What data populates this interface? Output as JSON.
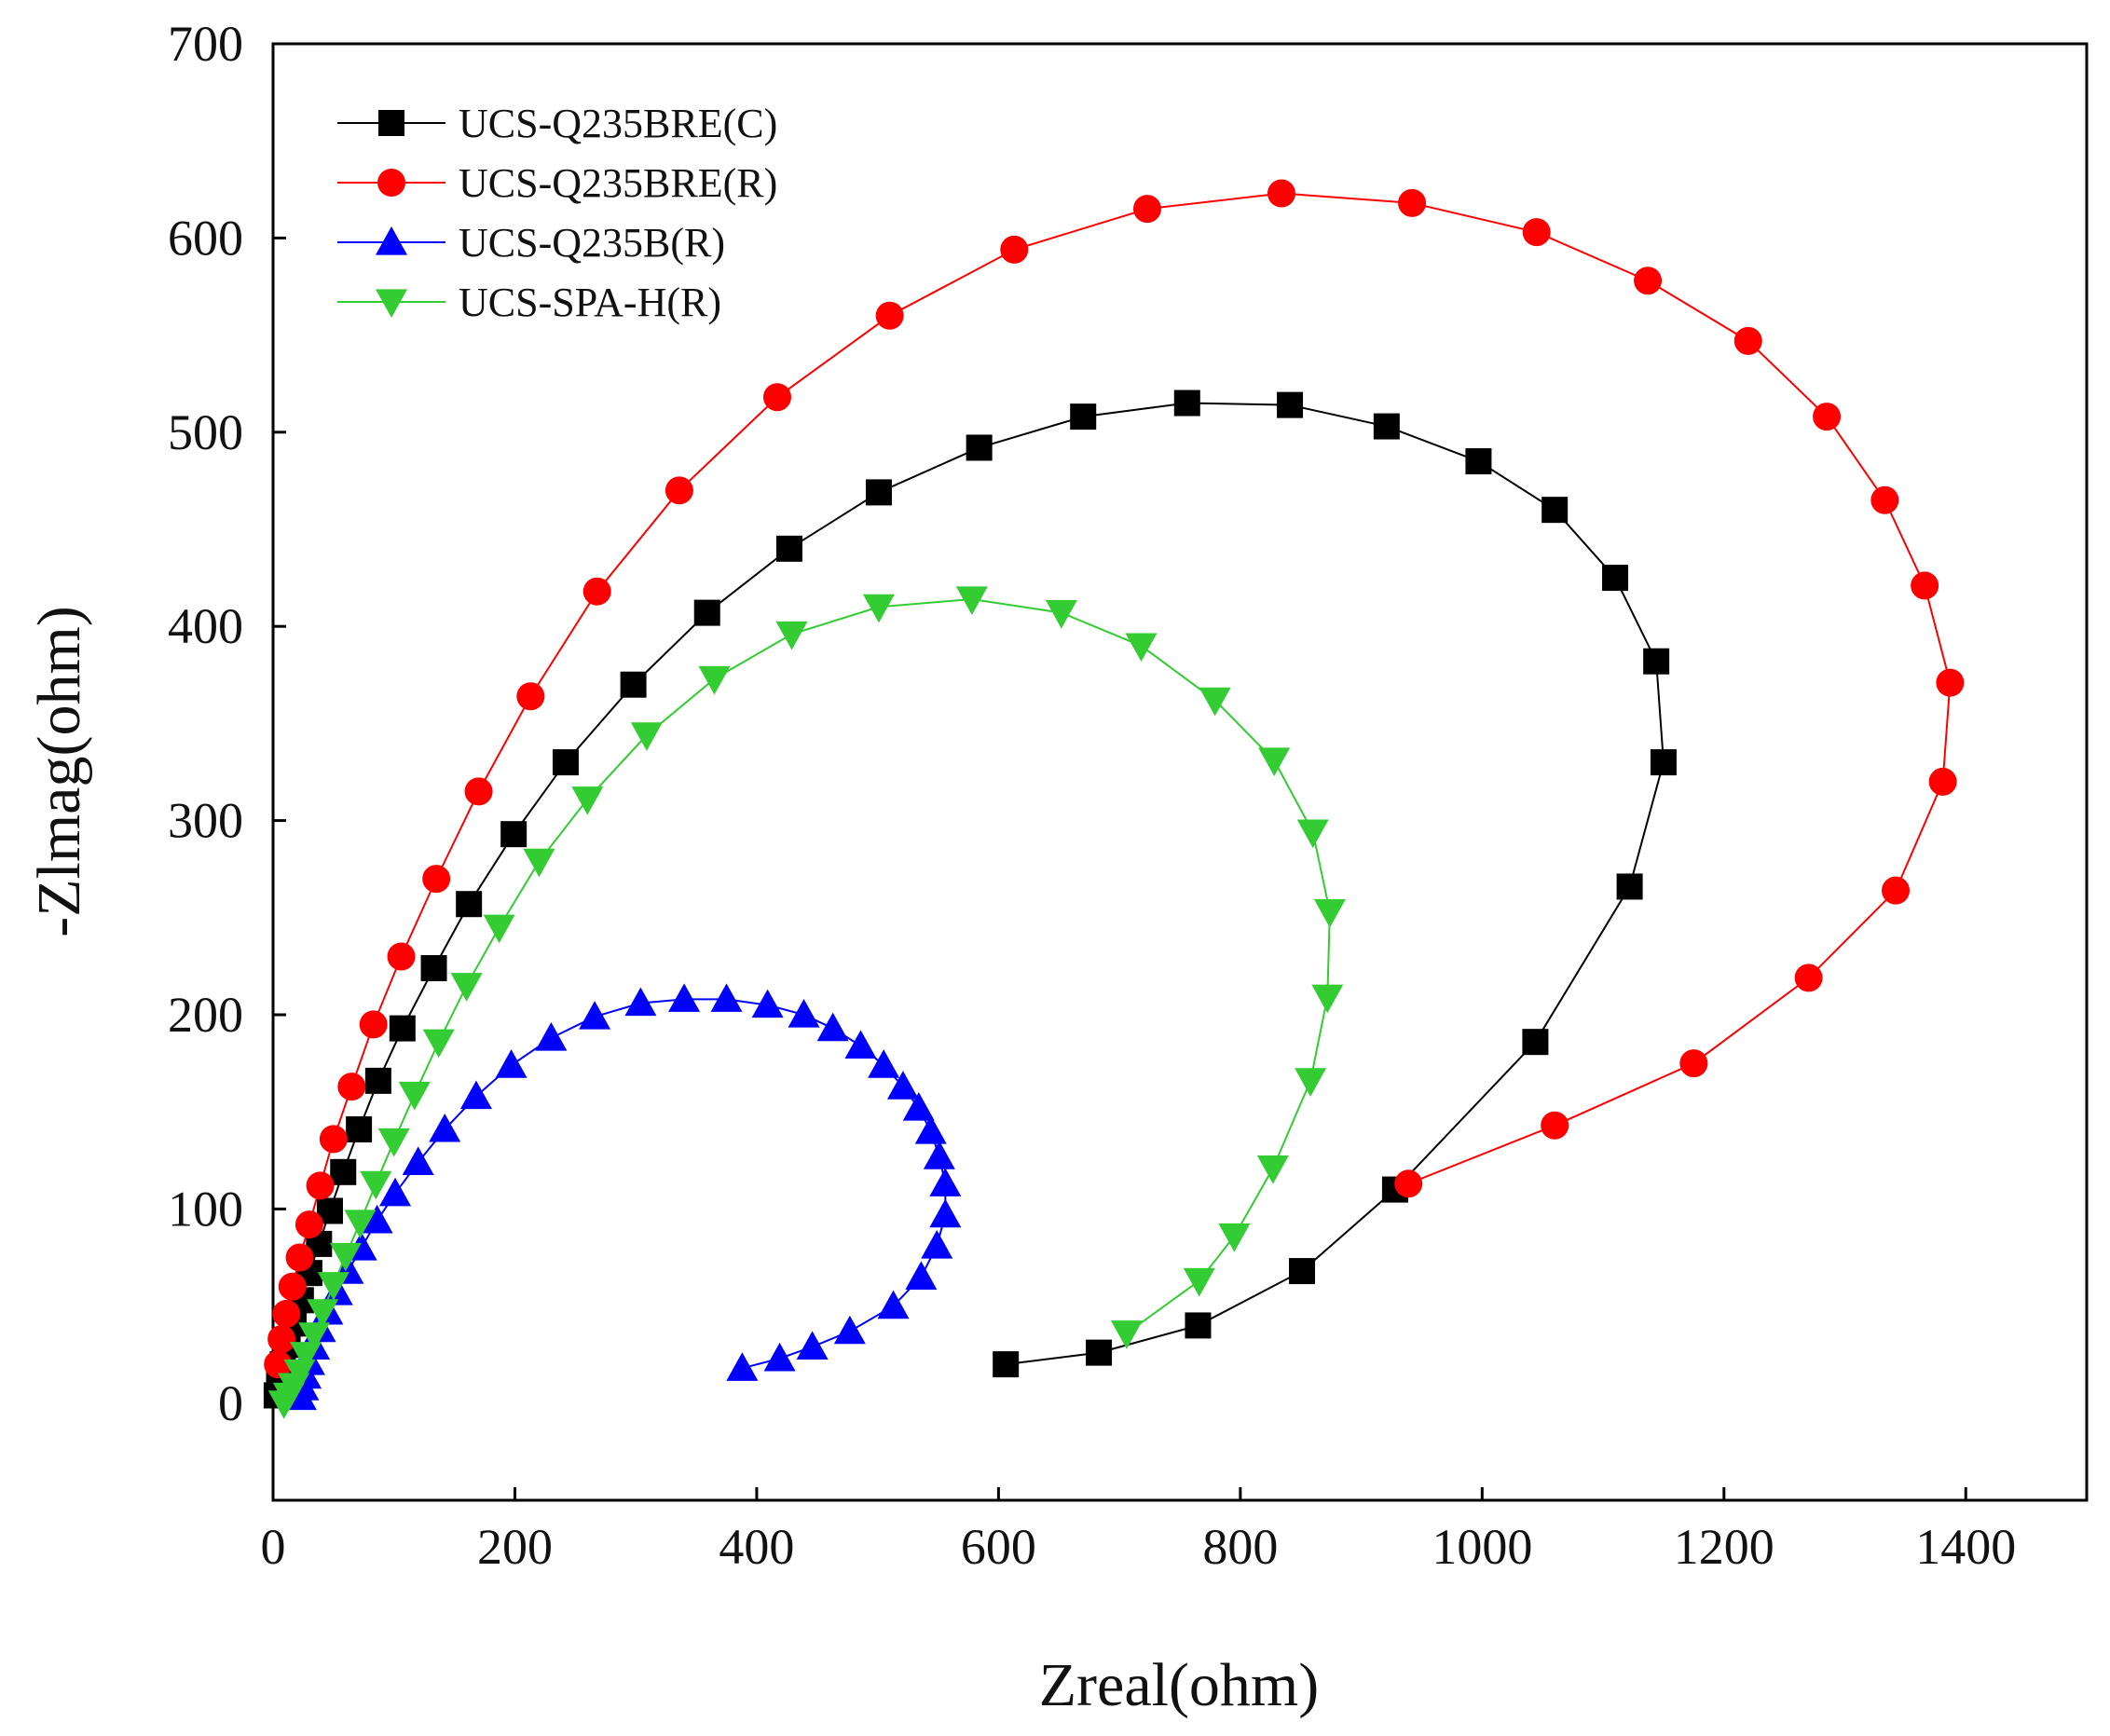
{
  "chart_data": {
    "type": "scatter",
    "title": "",
    "xlabel": "Zreal(ohm)",
    "ylabel": "-Zlmag(ohm)",
    "xlim": [
      0,
      1500
    ],
    "ylim": [
      -50,
      700
    ],
    "xticks": [
      0,
      200,
      400,
      600,
      800,
      1000,
      1200,
      1400
    ],
    "yticks": [
      0,
      100,
      200,
      300,
      400,
      500,
      600,
      700
    ],
    "legend_position": "top-left",
    "series": [
      {
        "name": "UCS-Q235BRE(C)",
        "color": "#000000",
        "marker": "square",
        "x": [
          606,
          683,
          765,
          851,
          928,
          1044,
          1122,
          1150,
          1144,
          1110,
          1060,
          997,
          921,
          841,
          756,
          670,
          584,
          501,
          427,
          359,
          298,
          242,
          199,
          162,
          133,
          107,
          87,
          71,
          58,
          47,
          38,
          30,
          23,
          17,
          12,
          8,
          5,
          3
        ],
        "y": [
          20,
          26,
          40,
          68,
          110,
          186,
          266,
          330,
          382,
          425,
          460,
          485,
          503,
          514,
          515,
          508,
          492,
          469,
          440,
          407,
          370,
          330,
          293,
          257,
          224,
          193,
          166,
          141,
          119,
          99,
          82,
          67,
          53,
          41,
          30,
          20,
          11,
          4
        ]
      },
      {
        "name": "UCS-Q235BRE(R)",
        "color": "#ff0000",
        "marker": "circle",
        "x": [
          939,
          1060,
          1175,
          1270,
          1342,
          1381,
          1387,
          1366,
          1333,
          1285,
          1220,
          1137,
          1045,
          942,
          834,
          723,
          613,
          510,
          417,
          336,
          268,
          213,
          170,
          135,
          106,
          83,
          65,
          50,
          39,
          30,
          22,
          16,
          11,
          7,
          4
        ],
        "y": [
          113,
          143,
          175,
          219,
          264,
          320,
          371,
          421,
          465,
          508,
          547,
          578,
          603,
          618,
          623,
          615,
          594,
          560,
          518,
          470,
          418,
          364,
          315,
          270,
          230,
          195,
          163,
          136,
          112,
          92,
          75,
          60,
          46,
          33,
          20
        ]
      },
      {
        "name": "UCS-Q235B(R)",
        "color": "#0000ff",
        "marker": "triangle-up",
        "x": [
          388,
          419,
          446,
          477,
          513,
          536,
          549,
          556,
          556,
          551,
          544,
          534,
          521,
          505,
          486,
          463,
          439,
          409,
          375,
          340,
          304,
          266,
          230,
          197,
          168,
          142,
          120,
          101,
          86,
          73,
          62,
          53,
          45,
          39,
          34,
          30,
          27,
          25,
          23
        ],
        "y": [
          18,
          23,
          29,
          37,
          50,
          65,
          81,
          97,
          113,
          127,
          140,
          152,
          163,
          174,
          184,
          193,
          200,
          205,
          208,
          208,
          206,
          199,
          188,
          174,
          158,
          141,
          124,
          108,
          94,
          80,
          68,
          57,
          47,
          38,
          29,
          21,
          14,
          8,
          3
        ]
      },
      {
        "name": "UCS-SPA-H(R)",
        "color": "#33cc33",
        "marker": "triangle-down",
        "x": [
          706,
          766,
          795,
          827,
          858,
          872,
          874,
          860,
          828,
          779,
          718,
          652,
          578,
          501,
          429,
          365,
          309,
          260,
          220,
          187,
          160,
          137,
          117,
          100,
          85,
          72,
          60,
          50,
          41,
          34,
          27,
          22,
          17,
          13,
          9
        ],
        "y": [
          36,
          63,
          86,
          121,
          166,
          209,
          253,
          294,
          331,
          362,
          390,
          407,
          414,
          410,
          396,
          373,
          344,
          311,
          279,
          245,
          215,
          186,
          159,
          135,
          113,
          93,
          76,
          61,
          47,
          35,
          25,
          16,
          9,
          4,
          0
        ]
      }
    ]
  }
}
